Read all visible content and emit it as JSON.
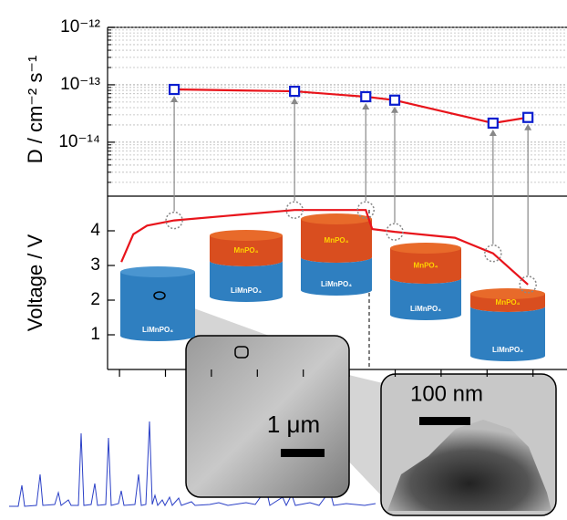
{
  "chart_data": [
    {
      "type": "line",
      "y_label": "D / cm⁻² s⁻¹",
      "log_y": true,
      "grid": true,
      "xlim": [
        -0.26,
        9.74
      ],
      "ylim": [
        1.15e-15,
        1e-12
      ],
      "yticks": [
        {
          "value": 1e-12,
          "label": "10⁻¹²"
        },
        {
          "value": 1e-13,
          "label": "10⁻¹³"
        },
        {
          "value": 1e-14,
          "label": "10⁻¹⁴"
        }
      ],
      "minor_yticks": [
        2e-15,
        3e-15,
        4e-15,
        5e-15,
        6e-15,
        7e-15,
        8e-15,
        9e-15,
        2e-14,
        3e-14,
        4e-14,
        5e-14,
        6e-14,
        7e-14,
        8e-14,
        9e-14,
        2e-13,
        3e-13,
        4e-13,
        5e-13,
        6e-13,
        7e-13,
        8e-13,
        9e-13
      ],
      "x": [
        1.19,
        3.81,
        5.36,
        5.99,
        8.13,
        8.89
      ],
      "series": [
        {
          "color": "#e8141b",
          "marker_color": "#0a1ecf",
          "values": [
            8.3e-14,
            7.7e-14,
            6.2e-14,
            5.4e-14,
            2.15e-14,
            2.7e-14
          ]
        }
      ]
    },
    {
      "type": "line",
      "y_label": "Voltage / V",
      "xlim": [
        -0.26,
        9.74
      ],
      "ylim": [
        0,
        5
      ],
      "xticks": [
        0,
        1,
        2,
        3,
        4,
        5,
        6,
        7,
        8,
        9
      ],
      "yticks": [
        1,
        2,
        3,
        4
      ],
      "x": [
        0.04,
        0.3,
        0.6,
        1.19,
        2.5,
        3.81,
        5.36,
        5.5,
        5.99,
        7.3,
        8.13,
        8.89
      ],
      "series": [
        {
          "color": "#e8141b",
          "values": [
            3.1,
            3.9,
            4.15,
            4.3,
            4.45,
            4.6,
            4.6,
            4.05,
            3.97,
            3.8,
            3.35,
            2.45
          ]
        }
      ],
      "highlight": [
        3,
        5,
        6,
        8,
        10,
        11
      ]
    }
  ],
  "annotations": {
    "limnpo4": "LiMnPO₄",
    "mnpo4": "MnPO₄",
    "scale_sem": "1 μm",
    "scale_tem": "100 nm"
  }
}
